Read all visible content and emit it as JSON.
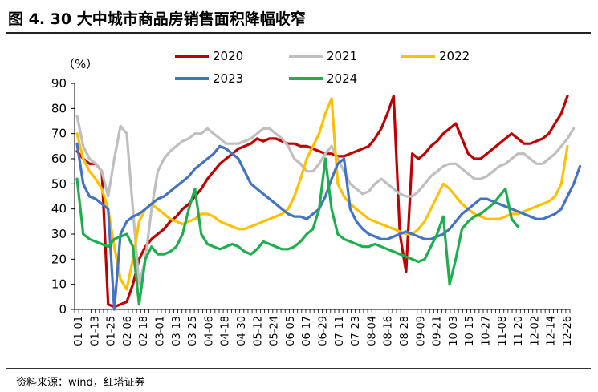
{
  "figure": {
    "title": "图 4. 30 大中城市商品房销售面积降幅收窄",
    "source": "资料来源：wind，红塔证券"
  },
  "chart_data": {
    "type": "line",
    "title": "图 4. 30 大中城市商品房销售面积降幅收窄",
    "ylabel": "（%）",
    "xlabel": "",
    "ylim": [
      0,
      90
    ],
    "yticks": [
      0,
      10,
      20,
      30,
      40,
      50,
      60,
      70,
      80,
      90
    ],
    "x_tick_labels": [
      "01-01",
      "01-13",
      "01-25",
      "02-06",
      "02-18",
      "03-01",
      "03-13",
      "03-25",
      "04-06",
      "04-18",
      "04-30",
      "05-12",
      "05-24",
      "06-05",
      "06-17",
      "06-29",
      "07-11",
      "07-23",
      "08-04",
      "08-16",
      "08-28",
      "09-09",
      "09-21",
      "10-03",
      "10-15",
      "10-27",
      "11-08",
      "11-20",
      "12-02",
      "12-14",
      "12-26"
    ],
    "legend_position": "top",
    "grid": false,
    "series": [
      {
        "name": "2020",
        "color": "#C00000",
        "values": [
          63,
          60,
          58,
          58,
          55,
          2,
          1,
          2,
          3,
          10,
          20,
          25,
          28,
          30,
          32,
          35,
          37,
          40,
          42,
          45,
          48,
          52,
          55,
          58,
          60,
          62,
          64,
          65,
          66,
          68,
          67,
          68,
          68,
          67,
          66,
          66,
          65,
          65,
          64,
          63,
          62,
          62,
          61,
          61,
          62,
          63,
          64,
          65,
          68,
          72,
          78,
          85,
          30,
          15,
          62,
          60,
          62,
          65,
          67,
          70,
          72,
          74,
          68,
          62,
          60,
          60,
          62,
          64,
          66,
          68,
          70,
          68,
          66,
          66,
          67,
          68,
          70,
          74,
          78,
          85
        ]
      },
      {
        "name": "2021",
        "color": "#BFBFBF",
        "values": [
          77,
          65,
          60,
          58,
          55,
          45,
          60,
          73,
          70,
          40,
          10,
          20,
          40,
          55,
          60,
          63,
          65,
          67,
          68,
          70,
          70,
          72,
          70,
          68,
          66,
          66,
          66,
          67,
          68,
          70,
          72,
          72,
          70,
          68,
          65,
          60,
          58,
          55,
          55,
          58,
          62,
          65,
          60,
          55,
          50,
          48,
          46,
          47,
          50,
          52,
          50,
          48,
          46,
          45,
          45,
          47,
          50,
          53,
          55,
          57,
          58,
          58,
          56,
          54,
          52,
          52,
          53,
          55,
          57,
          58,
          60,
          62,
          62,
          60,
          58,
          58,
          60,
          62,
          65,
          68,
          72
        ]
      },
      {
        "name": "2022",
        "color": "#FFC000",
        "values": [
          70,
          60,
          55,
          52,
          48,
          40,
          25,
          12,
          8,
          20,
          35,
          40,
          42,
          40,
          38,
          36,
          35,
          34,
          35,
          36,
          38,
          38,
          37,
          35,
          34,
          33,
          32,
          32,
          33,
          34,
          35,
          36,
          37,
          38,
          40,
          45,
          52,
          60,
          65,
          70,
          78,
          84,
          50,
          45,
          42,
          40,
          38,
          36,
          35,
          34,
          33,
          32,
          31,
          30,
          30,
          32,
          35,
          40,
          45,
          50,
          48,
          45,
          42,
          40,
          38,
          37,
          36,
          36,
          36,
          37,
          38,
          38,
          39,
          40,
          41,
          42,
          43,
          45,
          50,
          65
        ]
      },
      {
        "name": "2023",
        "color": "#4472C4",
        "values": [
          66,
          50,
          45,
          44,
          42,
          40,
          0,
          30,
          35,
          37,
          38,
          40,
          42,
          44,
          45,
          47,
          49,
          51,
          53,
          56,
          58,
          60,
          62,
          65,
          64,
          62,
          60,
          55,
          50,
          48,
          46,
          44,
          42,
          40,
          38,
          37,
          37,
          36,
          38,
          40,
          45,
          52,
          58,
          60,
          40,
          35,
          32,
          30,
          29,
          28,
          28,
          29,
          30,
          31,
          30,
          29,
          28,
          28,
          29,
          30,
          32,
          35,
          38,
          40,
          42,
          44,
          44,
          43,
          42,
          41,
          40,
          39,
          38,
          37,
          36,
          36,
          37,
          38,
          40,
          45,
          50,
          57
        ]
      },
      {
        "name": "2024",
        "color": "#1DAF4E",
        "values": [
          52,
          30,
          28,
          27,
          26,
          25,
          28,
          29,
          30,
          25,
          2,
          20,
          25,
          22,
          22,
          23,
          25,
          30,
          40,
          48,
          30,
          26,
          25,
          24,
          25,
          26,
          25,
          23,
          22,
          24,
          27,
          26,
          25,
          24,
          24,
          25,
          27,
          30,
          32,
          40,
          60,
          40,
          30,
          28,
          27,
          26,
          25,
          25,
          26,
          25,
          24,
          23,
          22,
          21,
          20,
          19,
          20,
          25,
          30,
          37,
          10,
          20,
          32,
          35,
          37,
          38,
          40,
          42,
          45,
          48,
          36,
          33
        ]
      }
    ],
    "legend": [
      "2020",
      "2021",
      "2022",
      "2023",
      "2024"
    ]
  }
}
